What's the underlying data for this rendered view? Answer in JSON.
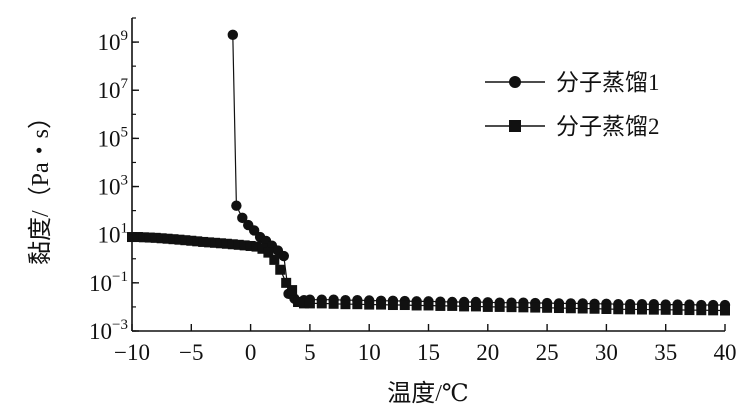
{
  "chart_data": {
    "type": "scatter",
    "xlabel": "温度/℃",
    "ylabel": "黏度/（Pa・s）",
    "xlim": [
      -10,
      40
    ],
    "ylim_log10": [
      -3,
      10
    ],
    "y_scale": "log",
    "grid": false,
    "legend_position": "top-right",
    "x_ticks": [
      -10,
      -5,
      0,
      5,
      10,
      15,
      20,
      25,
      30,
      35,
      40
    ],
    "x_tick_labels": [
      "−10",
      "−5",
      "0",
      "5",
      "10",
      "15",
      "20",
      "25",
      "30",
      "35",
      "40"
    ],
    "y_ticks": [
      {
        "base": "10",
        "exp": "9",
        "value": 1000000000.0
      },
      {
        "base": "10",
        "exp": "7",
        "value": 10000000.0
      },
      {
        "base": "10",
        "exp": "5",
        "value": 100000.0
      },
      {
        "base": "10",
        "exp": "3",
        "value": 1000.0
      },
      {
        "base": "10",
        "exp": "1",
        "value": 10.0
      },
      {
        "base": "10",
        "exp": "−1",
        "value": 0.1
      },
      {
        "base": "10",
        "exp": "−3",
        "value": 0.001
      }
    ],
    "series": [
      {
        "name": "分子蒸馏1",
        "marker": "circle",
        "color": "#111111",
        "points": [
          [
            -1.5,
            2000000000.0
          ],
          [
            -1.2,
            160.0
          ],
          [
            -0.7,
            50.0
          ],
          [
            -0.2,
            25.0
          ],
          [
            0.3,
            15.0
          ],
          [
            0.8,
            8.0
          ],
          [
            1.3,
            5.5
          ],
          [
            1.8,
            3.5
          ],
          [
            2.3,
            2.2
          ],
          [
            2.8,
            1.3
          ],
          [
            3.2,
            0.035
          ],
          [
            3.7,
            0.022
          ],
          [
            4.5,
            0.019
          ],
          [
            5.0,
            0.02
          ],
          [
            6.0,
            0.02
          ],
          [
            7.0,
            0.02
          ],
          [
            8.0,
            0.019
          ],
          [
            9.0,
            0.019
          ],
          [
            10.0,
            0.0185
          ],
          [
            11.0,
            0.018
          ],
          [
            12.0,
            0.018
          ],
          [
            13.0,
            0.0175
          ],
          [
            14.0,
            0.017
          ],
          [
            15.0,
            0.017
          ],
          [
            16.0,
            0.0165
          ],
          [
            17.0,
            0.016
          ],
          [
            18.0,
            0.016
          ],
          [
            19.0,
            0.016
          ],
          [
            20.0,
            0.0155
          ],
          [
            21.0,
            0.015
          ],
          [
            22.0,
            0.015
          ],
          [
            23.0,
            0.015
          ],
          [
            24.0,
            0.0145
          ],
          [
            25.0,
            0.0145
          ],
          [
            26.0,
            0.014
          ],
          [
            27.0,
            0.014
          ],
          [
            28.0,
            0.014
          ],
          [
            29.0,
            0.0135
          ],
          [
            30.0,
            0.0135
          ],
          [
            31.0,
            0.013
          ],
          [
            32.0,
            0.013
          ],
          [
            33.0,
            0.013
          ],
          [
            34.0,
            0.013
          ],
          [
            35.0,
            0.0125
          ],
          [
            36.0,
            0.0125
          ],
          [
            37.0,
            0.0125
          ],
          [
            38.0,
            0.012
          ],
          [
            39.0,
            0.012
          ],
          [
            40.0,
            0.012
          ]
        ]
      },
      {
        "name": "分子蒸馏2",
        "marker": "square",
        "color": "#111111",
        "points": [
          [
            -10.0,
            8.0
          ],
          [
            -9.5,
            8.0
          ],
          [
            -9.0,
            7.8
          ],
          [
            -8.5,
            7.6
          ],
          [
            -8.0,
            7.4
          ],
          [
            -7.5,
            7.1
          ],
          [
            -7.0,
            6.8
          ],
          [
            -6.5,
            6.5
          ],
          [
            -6.0,
            6.2
          ],
          [
            -5.5,
            5.9
          ],
          [
            -5.0,
            5.6
          ],
          [
            -4.5,
            5.3
          ],
          [
            -4.0,
            5.0
          ],
          [
            -3.5,
            4.8
          ],
          [
            -3.0,
            4.6
          ],
          [
            -2.5,
            4.4
          ],
          [
            -2.0,
            4.2
          ],
          [
            -1.5,
            4.0
          ],
          [
            -1.0,
            3.8
          ],
          [
            -0.5,
            3.6
          ],
          [
            0.0,
            3.4
          ],
          [
            0.5,
            3.2
          ],
          [
            1.0,
            2.6
          ],
          [
            1.5,
            1.8
          ],
          [
            2.0,
            0.9
          ],
          [
            2.5,
            0.35
          ],
          [
            3.0,
            0.1
          ],
          [
            3.5,
            0.05
          ],
          [
            4.0,
            0.016
          ],
          [
            4.5,
            0.014
          ],
          [
            5.0,
            0.014
          ],
          [
            6.0,
            0.014
          ],
          [
            7.0,
            0.0135
          ],
          [
            8.0,
            0.013
          ],
          [
            9.0,
            0.013
          ],
          [
            10.0,
            0.0125
          ],
          [
            11.0,
            0.0125
          ],
          [
            12.0,
            0.012
          ],
          [
            13.0,
            0.012
          ],
          [
            14.0,
            0.0115
          ],
          [
            15.0,
            0.0115
          ],
          [
            16.0,
            0.011
          ],
          [
            17.0,
            0.011
          ],
          [
            18.0,
            0.0105
          ],
          [
            19.0,
            0.0105
          ],
          [
            20.0,
            0.01
          ],
          [
            21.0,
            0.01
          ],
          [
            22.0,
            0.0098
          ],
          [
            23.0,
            0.0096
          ],
          [
            24.0,
            0.0094
          ],
          [
            25.0,
            0.0092
          ],
          [
            26.0,
            0.009
          ],
          [
            27.0,
            0.0088
          ],
          [
            28.0,
            0.0086
          ],
          [
            29.0,
            0.0084
          ],
          [
            30.0,
            0.0082
          ],
          [
            31.0,
            0.008
          ],
          [
            32.0,
            0.0079
          ],
          [
            33.0,
            0.0078
          ],
          [
            34.0,
            0.0077
          ],
          [
            35.0,
            0.0076
          ],
          [
            36.0,
            0.0075
          ],
          [
            37.0,
            0.0074
          ],
          [
            38.0,
            0.0073
          ],
          [
            39.0,
            0.0072
          ],
          [
            40.0,
            0.0071
          ]
        ]
      }
    ]
  }
}
